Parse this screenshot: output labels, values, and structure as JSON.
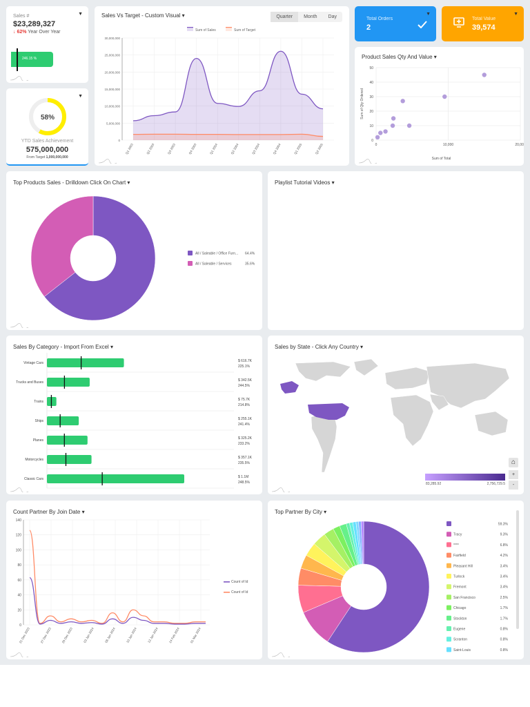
{
  "sales_card": {
    "label": "Sales #",
    "value": "$23,289,327",
    "change": "62%",
    "change_label": "Year Over Year",
    "bar_label": "246.15 %",
    "bar_pct": 246.15
  },
  "ytd_card": {
    "percent": 58,
    "percent_label": "58%",
    "label": "YTD Sales Achievement",
    "value": "575,000,000",
    "target_prefix": "From Target",
    "target": "1,000,000,000",
    "color": "#ffee00"
  },
  "sales_target": {
    "title": "Sales Vs Target - Custom Visual",
    "toggle": [
      "Quarter",
      "Month",
      "Day"
    ],
    "active": "Quarter",
    "chart_data": {
      "type": "area",
      "categories": [
        "Q1 2003",
        "Q2 2003",
        "Q3 2003",
        "Q4 2003",
        "Q1 2004",
        "Q2 2004",
        "Q3 2004",
        "Q4 2004",
        "Q1 2005",
        "Q2 2005"
      ],
      "series": [
        {
          "name": "Sum of Sales",
          "color": "#7e57c2",
          "values": [
            5700000,
            7200000,
            8300000,
            24000000,
            10800000,
            9900000,
            14500000,
            26100000,
            13500000,
            9200000
          ]
        },
        {
          "name": "Sum of Target",
          "color": "#ff8a65",
          "values": [
            1700000,
            1750000,
            1750000,
            1700000,
            1700000,
            1650000,
            1650000,
            1650000,
            1750000,
            1100000
          ]
        }
      ],
      "ylim": [
        0,
        30000000
      ],
      "yticks": [
        "0",
        "5,000,000",
        "10,000,000",
        "15,000,000",
        "20,000,000",
        "25,000,000",
        "30,000,000"
      ],
      "legend": "top",
      "grid": true
    }
  },
  "total_orders": {
    "label": "Total Orders",
    "value": "2",
    "color": "#2196f3"
  },
  "total_value": {
    "label": "Total Value",
    "value": "39,574",
    "color": "#ffa500"
  },
  "scatter": {
    "title": "Product Sales Qty And Value",
    "chart_data": {
      "type": "scatter",
      "xlabel": "Sum of Total",
      "ylabel": "Sum of Qty Ordered",
      "xlim": [
        0,
        20000
      ],
      "ylim": [
        0,
        50
      ],
      "xticks": [
        "0",
        "10,000",
        "20,000"
      ],
      "yticks": [
        "0",
        "10",
        "20",
        "30",
        "40",
        "50"
      ],
      "points": [
        [
          200,
          2
        ],
        [
          600,
          5
        ],
        [
          1300,
          6
        ],
        [
          2300,
          10
        ],
        [
          2400,
          15
        ],
        [
          3700,
          27
        ],
        [
          4600,
          10
        ],
        [
          9500,
          30
        ],
        [
          15000,
          45
        ]
      ],
      "color": "#b39ddb"
    }
  },
  "top_products": {
    "title": "Top Products Sales - Drilldown Click On Chart",
    "chart_data": {
      "type": "pie",
      "slices": [
        {
          "label": "All / Saleable / Office Furn...",
          "pct_label": "64.4%",
          "value": 64.4,
          "color": "#7e57c2"
        },
        {
          "label": "All / Saleable / Services",
          "pct_label": "35.6%",
          "value": 35.6,
          "color": "#d35db5"
        }
      ],
      "legend": "right"
    }
  },
  "playlist": {
    "title": "Playlist Tutorial Videos"
  },
  "category": {
    "title": "Sales By Category - Import From Excel",
    "chart_data": {
      "type": "bar",
      "orientation": "horizontal",
      "color": "#2ecc71",
      "rows": [
        {
          "name": "Vintage Cars",
          "value": 616.7,
          "value_label": "$ 616.7K",
          "pct_label": "225.1%",
          "pct": 225.1
        },
        {
          "name": "Trucks and Buses",
          "value": 342.5,
          "value_label": "$ 342.5K",
          "pct_label": "244.5%",
          "pct": 244.5
        },
        {
          "name": "Trains",
          "value": 75.7,
          "value_label": "$ 75.7K",
          "pct_label": "214.8%",
          "pct": 214.8
        },
        {
          "name": "Ships",
          "value": 255.1,
          "value_label": "$ 255.1K",
          "pct_label": "241.4%",
          "pct": 241.4
        },
        {
          "name": "Planes",
          "value": 325.2,
          "value_label": "$ 325.2K",
          "pct_label": "233.2%",
          "pct": 233.2
        },
        {
          "name": "Motorcycles",
          "value": 357.1,
          "value_label": "$ 357.1K",
          "pct_label": "235.5%",
          "pct": 235.5
        },
        {
          "name": "Classic Cars",
          "value": 1100,
          "value_label": "$ 1.1M",
          "pct_label": "248.5%",
          "pct": 248.5
        }
      ]
    }
  },
  "state": {
    "title": "Sales by State - Click Any Country",
    "legend_min": "83,285.92",
    "legend_max": "2,756,729.5",
    "zoom_in": "+",
    "zoom_out": "-",
    "highlight": "#7e57c2"
  },
  "partner_date": {
    "title": "Count Partner By Join Date",
    "chart_data": {
      "type": "line",
      "ylim": [
        0,
        140
      ],
      "yticks": [
        "0",
        "20",
        "40",
        "60",
        "80",
        "100",
        "120",
        "140"
      ],
      "xticks": [
        "21 Dec 2023",
        "27 Dec 2023",
        "29 Dec 2023",
        "03 Jan 2024",
        "08 Jan 2024",
        "10 Jan 2024",
        "12 Jan 2024",
        "14 Feb 2024",
        "01 Mar 2024"
      ],
      "series": [
        {
          "name": "Count of Id",
          "color": "#7e57c2",
          "values": [
            63,
            1,
            6,
            2,
            4,
            2,
            3,
            1,
            8,
            2,
            10,
            6,
            2,
            2,
            1,
            1,
            2,
            2
          ]
        },
        {
          "name": "Count of Id",
          "color": "#ff8a65",
          "values": [
            126,
            2,
            12,
            4,
            8,
            4,
            6,
            2,
            16,
            4,
            20,
            12,
            4,
            4,
            2,
            2,
            4,
            4
          ]
        }
      ],
      "legend": "right",
      "grid": true
    }
  },
  "partner_city": {
    "title": "Top Partner By City",
    "chart_data": {
      "type": "pie",
      "legend": "right",
      "slices": [
        {
          "label": "",
          "pct_label": "59.3%",
          "value": 59.3,
          "color": "#7e57c2"
        },
        {
          "label": "Tracy",
          "pct_label": "9.3%",
          "value": 9.3,
          "color": "#d35db5"
        },
        {
          "label": "****",
          "pct_label": "6.8%",
          "value": 6.8,
          "color": "#ff6f91"
        },
        {
          "label": "Fairfield",
          "pct_label": "4.2%",
          "value": 4.2,
          "color": "#ff8c66"
        },
        {
          "label": "Pleasant Hill",
          "pct_label": "3.4%",
          "value": 3.4,
          "color": "#ffb74d"
        },
        {
          "label": "Turlock",
          "pct_label": "3.4%",
          "value": 3.4,
          "color": "#fff35c"
        },
        {
          "label": "Fremont",
          "pct_label": "3.4%",
          "value": 3.4,
          "color": "#d4f56b"
        },
        {
          "label": "San Francisco",
          "pct_label": "2.5%",
          "value": 2.5,
          "color": "#a5f064"
        },
        {
          "label": "Chicago",
          "pct_label": "1.7%",
          "value": 1.7,
          "color": "#7cf060"
        },
        {
          "label": "Stockton",
          "pct_label": "1.7%",
          "value": 1.7,
          "color": "#66f08a"
        },
        {
          "label": "Eugene",
          "pct_label": "0.8%",
          "value": 0.8,
          "color": "#66f0b0"
        },
        {
          "label": "Scranton",
          "pct_label": "0.8%",
          "value": 0.8,
          "color": "#66f0e0"
        },
        {
          "label": "Saint-Louis",
          "pct_label": "0.8%",
          "value": 0.8,
          "color": "#66e0ff"
        }
      ]
    }
  }
}
